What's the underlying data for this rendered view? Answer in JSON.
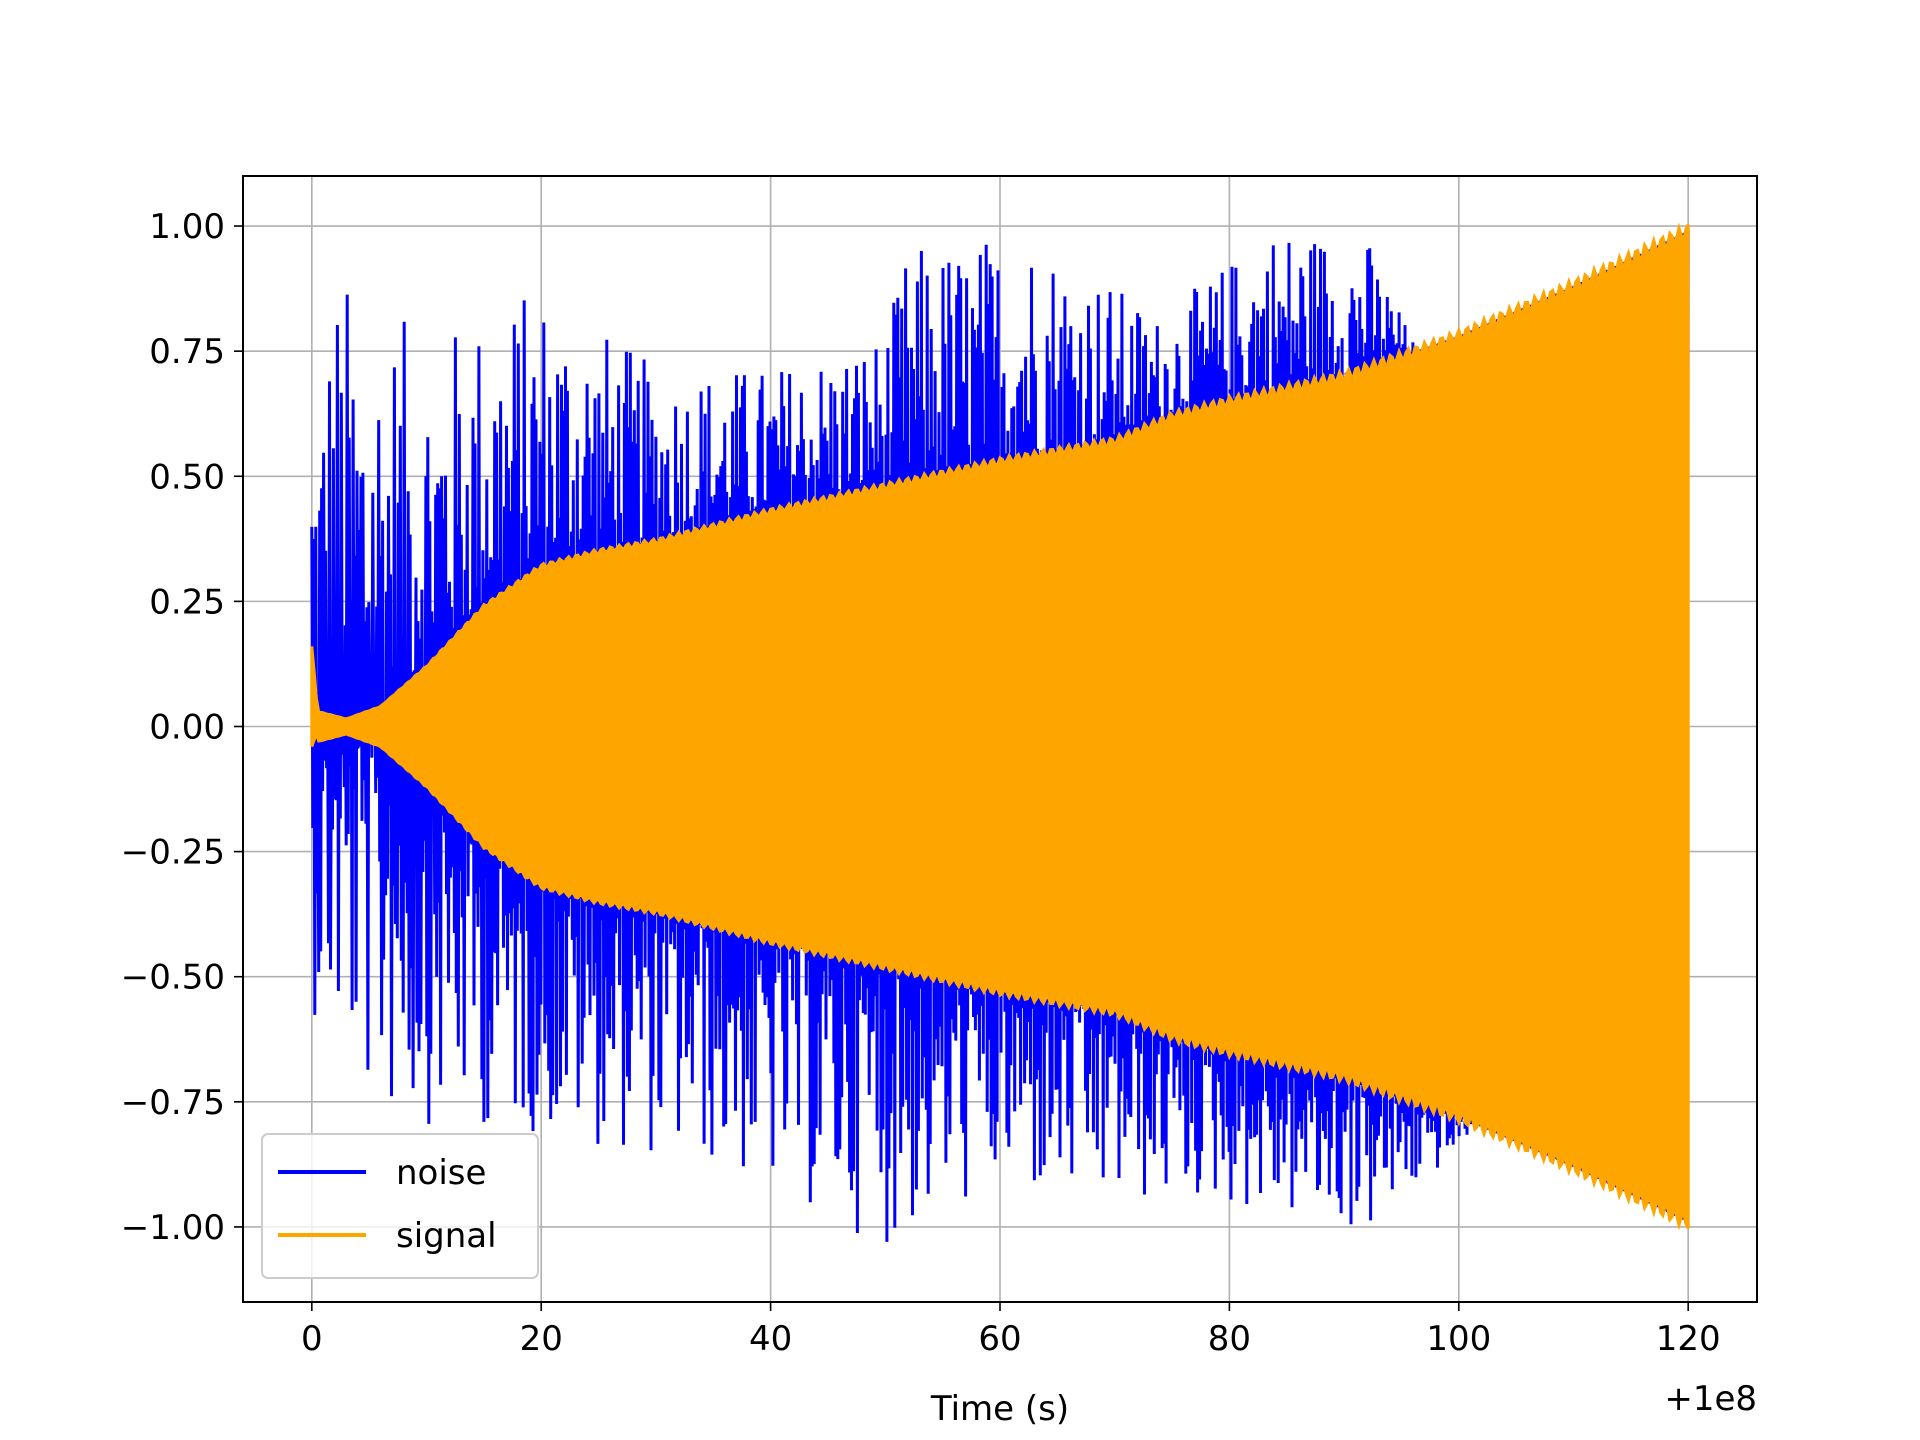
{
  "chart_data": {
    "type": "line",
    "xlabel": "Time (s)",
    "ylabel": "",
    "title": "",
    "x_offset_text": "+1e8",
    "xlim": [
      -6,
      126
    ],
    "ylim": [
      -1.15,
      1.1
    ],
    "x_ticks": [
      0,
      20,
      40,
      60,
      80,
      100,
      120
    ],
    "x_tick_labels": [
      "0",
      "20",
      "40",
      "60",
      "80",
      "100",
      "120"
    ],
    "y_ticks": [
      1.0,
      0.75,
      0.5,
      0.25,
      0.0,
      -0.25,
      -0.5,
      -0.75,
      -1.0
    ],
    "y_tick_labels": [
      "1.00",
      "0.75",
      "0.50",
      "0.25",
      "0.00",
      "−0.25",
      "−0.50",
      "−0.75",
      "−1.00"
    ],
    "grid": true,
    "legend_position": "lower-left",
    "series": [
      {
        "name": "noise",
        "color": "#0000ff",
        "description_values": {
          "x_range": [
            0,
            120
          ],
          "envelope_upper": [
            [
              0,
              0.63
            ],
            [
              2,
              0.92
            ],
            [
              10,
              0.78
            ],
            [
              20,
              0.89
            ],
            [
              30,
              0.72
            ],
            [
              40,
              0.72
            ],
            [
              50,
              0.79
            ],
            [
              52,
              0.96
            ],
            [
              63,
              1.0
            ],
            [
              74,
              0.82
            ],
            [
              84,
              1.01
            ],
            [
              92,
              0.98
            ],
            [
              100,
              0.56
            ],
            [
              120,
              0.0
            ]
          ],
          "envelope_lower": [
            [
              0,
              -0.57
            ],
            [
              6,
              -0.79
            ],
            [
              18,
              -0.81
            ],
            [
              36,
              -0.89
            ],
            [
              50,
              -1.04
            ],
            [
              60,
              -0.93
            ],
            [
              67,
              -0.97
            ],
            [
              78,
              -0.95
            ],
            [
              92,
              -1.02
            ],
            [
              100,
              -0.85
            ],
            [
              120,
              0.0
            ]
          ]
        }
      },
      {
        "name": "signal",
        "color": "#ffa500",
        "envelope": [
          [
            0,
            0.16
          ],
          [
            0.5,
            0.03
          ],
          [
            3,
            0.015
          ],
          [
            6,
            0.04
          ],
          [
            10,
            0.12
          ],
          [
            15,
            0.24
          ],
          [
            20,
            0.32
          ],
          [
            25,
            0.35
          ],
          [
            30,
            0.37
          ],
          [
            40,
            0.43
          ],
          [
            50,
            0.48
          ],
          [
            60,
            0.53
          ],
          [
            70,
            0.57
          ],
          [
            75,
            0.62
          ],
          [
            80,
            0.65
          ],
          [
            90,
            0.7
          ],
          [
            100,
            0.78
          ],
          [
            110,
            0.88
          ],
          [
            120,
            0.99
          ]
        ]
      }
    ]
  }
}
